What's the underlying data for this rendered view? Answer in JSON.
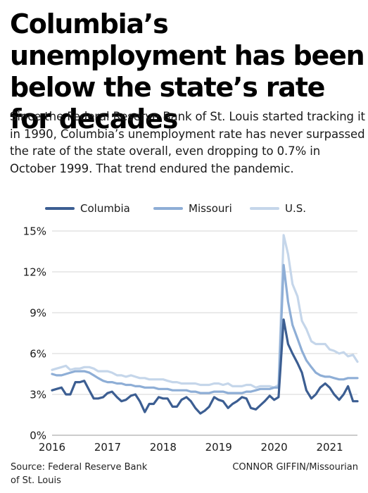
{
  "title": "Columbia’s unemployment has been below the state’s rate for decades",
  "subtitle": "Since the Federal Reserve Bank of St. Louis started tracking it in 1990, Columbia’s unemployment rate has never surpassed the rate of the state overall, even dropping to 0.7% in October 1999. That trend endured the pandemic.",
  "source": "Source: Federal Reserve Bank of St. Louis",
  "credit": "CONNOR GIFFIN/Missourian",
  "colors": {
    "columbia": "#3c5e92",
    "missouri": "#8eaed6",
    "us": "#c5d6ea",
    "grid": "#d4d4d4"
  },
  "chart_data": {
    "type": "line",
    "title": "",
    "xlabel": "",
    "ylabel": "",
    "xlim": [
      2016,
      2021.5
    ],
    "ylim": [
      0,
      15
    ],
    "yticks": [
      0,
      3,
      6,
      9,
      12,
      15
    ],
    "ytick_labels": [
      "0%",
      "3%",
      "6%",
      "9%",
      "12%",
      "15%"
    ],
    "xticks": [
      2016,
      2017,
      2018,
      2019,
      2020,
      2021
    ],
    "xtick_labels": [
      "2016",
      "2017",
      "2018",
      "2019",
      "2020",
      "2021"
    ],
    "grid": "horizontal",
    "legend": "top",
    "x": [
      2016.0,
      2016.08,
      2016.17,
      2016.25,
      2016.33,
      2016.42,
      2016.5,
      2016.58,
      2016.67,
      2016.75,
      2016.83,
      2016.92,
      2017.0,
      2017.08,
      2017.17,
      2017.25,
      2017.33,
      2017.42,
      2017.5,
      2017.58,
      2017.67,
      2017.75,
      2017.83,
      2017.92,
      2018.0,
      2018.08,
      2018.17,
      2018.25,
      2018.33,
      2018.42,
      2018.5,
      2018.58,
      2018.67,
      2018.75,
      2018.83,
      2018.92,
      2019.0,
      2019.08,
      2019.17,
      2019.25,
      2019.33,
      2019.42,
      2019.5,
      2019.58,
      2019.67,
      2019.75,
      2019.83,
      2019.92,
      2020.0,
      2020.08,
      2020.17,
      2020.25,
      2020.33,
      2020.42,
      2020.5,
      2020.58,
      2020.67,
      2020.75,
      2020.83,
      2020.92,
      2021.0,
      2021.08,
      2021.17,
      2021.25,
      2021.33,
      2021.42,
      2021.5
    ],
    "series": [
      {
        "name": "Columbia",
        "values": [
          3.3,
          3.4,
          3.5,
          3.0,
          3.0,
          3.9,
          3.9,
          4.0,
          3.3,
          2.7,
          2.7,
          2.8,
          3.1,
          3.2,
          2.8,
          2.5,
          2.6,
          2.9,
          3.0,
          2.5,
          1.7,
          2.3,
          2.3,
          2.8,
          2.7,
          2.7,
          2.1,
          2.1,
          2.6,
          2.8,
          2.5,
          2.0,
          1.6,
          1.8,
          2.1,
          2.8,
          2.6,
          2.5,
          2.0,
          2.3,
          2.5,
          2.8,
          2.7,
          2.0,
          1.9,
          2.2,
          2.5,
          2.9,
          2.6,
          2.8,
          8.5,
          6.7,
          6.0,
          5.3,
          4.6,
          3.3,
          2.7,
          3.0,
          3.5,
          3.8,
          3.5,
          3.0,
          2.6,
          3.0,
          3.6,
          2.5,
          2.5
        ]
      },
      {
        "name": "Missouri",
        "values": [
          4.5,
          4.4,
          4.4,
          4.5,
          4.6,
          4.7,
          4.7,
          4.7,
          4.6,
          4.4,
          4.2,
          4.0,
          3.9,
          3.9,
          3.8,
          3.8,
          3.7,
          3.7,
          3.6,
          3.6,
          3.5,
          3.5,
          3.5,
          3.4,
          3.4,
          3.4,
          3.3,
          3.3,
          3.3,
          3.3,
          3.2,
          3.2,
          3.1,
          3.1,
          3.1,
          3.2,
          3.2,
          3.2,
          3.1,
          3.1,
          3.1,
          3.1,
          3.2,
          3.2,
          3.3,
          3.4,
          3.4,
          3.4,
          3.5,
          3.5,
          12.5,
          9.8,
          8.1,
          7.1,
          6.2,
          5.5,
          5.0,
          4.6,
          4.4,
          4.3,
          4.3,
          4.2,
          4.1,
          4.1,
          4.2,
          4.2,
          4.2
        ]
      },
      {
        "name": "U.S.",
        "values": [
          4.8,
          4.9,
          5.0,
          5.1,
          4.8,
          4.9,
          4.9,
          5.0,
          5.0,
          4.9,
          4.7,
          4.7,
          4.7,
          4.6,
          4.4,
          4.4,
          4.3,
          4.4,
          4.3,
          4.2,
          4.2,
          4.1,
          4.1,
          4.1,
          4.1,
          4.0,
          3.9,
          3.9,
          3.8,
          3.8,
          3.8,
          3.8,
          3.7,
          3.7,
          3.7,
          3.8,
          3.8,
          3.7,
          3.8,
          3.6,
          3.6,
          3.6,
          3.7,
          3.7,
          3.5,
          3.6,
          3.6,
          3.6,
          3.5,
          3.7,
          14.7,
          13.3,
          11.1,
          10.2,
          8.4,
          7.8,
          6.9,
          6.7,
          6.7,
          6.7,
          6.3,
          6.2,
          6.0,
          6.1,
          5.8,
          5.9,
          5.4
        ]
      }
    ]
  }
}
